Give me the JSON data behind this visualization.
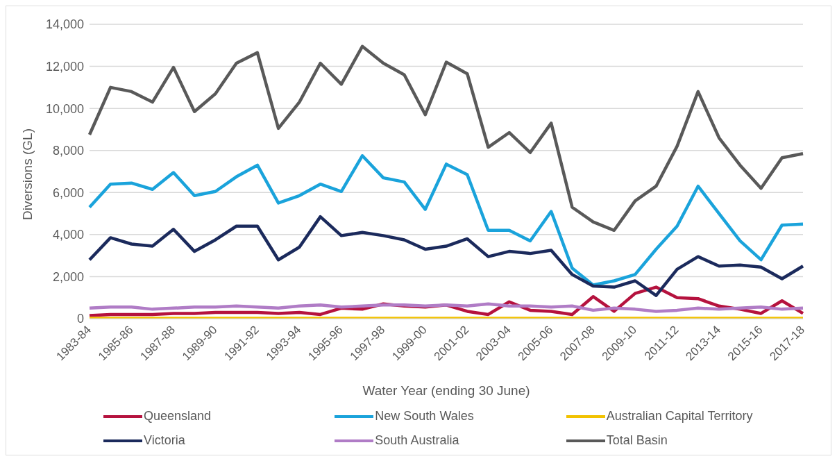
{
  "chart_data": {
    "type": "line",
    "xlabel": "Water Year (ending 30 June)",
    "ylabel": "Diversions (GL)",
    "categories": [
      "1983-84",
      null,
      "1985-86",
      null,
      "1987-88",
      null,
      "1989-90",
      null,
      "1991-92",
      null,
      "1993-94",
      null,
      "1995-96",
      null,
      "1997-98",
      null,
      "1999-00",
      null,
      "2001-02",
      null,
      "2003-04",
      null,
      "2005-06",
      null,
      "2007-08",
      null,
      "2009-10",
      null,
      "2011-12",
      null,
      "2013-14",
      null,
      "2015-16",
      null,
      "2017-18"
    ],
    "series": [
      {
        "name": "Queensland",
        "color": "#b5123e",
        "values": [
          150,
          200,
          200,
          200,
          250,
          250,
          300,
          300,
          300,
          250,
          300,
          200,
          500,
          450,
          700,
          600,
          550,
          650,
          350,
          200,
          800,
          400,
          350,
          200,
          1050,
          350,
          1200,
          1500,
          1000,
          950,
          600,
          450,
          250,
          850,
          250
        ]
      },
      {
        "name": "New South Wales",
        "color": "#1aa3db",
        "values": [
          5300,
          6400,
          6450,
          6150,
          6950,
          5850,
          6050,
          6750,
          7300,
          5500,
          5850,
          6400,
          6050,
          7750,
          6700,
          6500,
          5200,
          7350,
          6850,
          4200,
          4200,
          3700,
          5100,
          2400,
          1600,
          1800,
          2100,
          3300,
          4400,
          6300,
          5000,
          3700,
          2800,
          4450,
          4500
        ]
      },
      {
        "name": "Australian Capital Territory",
        "color": "#f2c200",
        "values": [
          20,
          20,
          20,
          20,
          20,
          20,
          20,
          20,
          20,
          20,
          20,
          20,
          20,
          20,
          20,
          20,
          20,
          20,
          20,
          20,
          20,
          20,
          20,
          20,
          20,
          20,
          20,
          20,
          20,
          20,
          20,
          20,
          20,
          20,
          20
        ]
      },
      {
        "name": "Victoria",
        "color": "#1b2a5c",
        "values": [
          2800,
          3850,
          3550,
          3450,
          4250,
          3200,
          3750,
          4400,
          4400,
          2800,
          3400,
          4850,
          3950,
          4100,
          3950,
          3750,
          3300,
          3450,
          3800,
          2950,
          3200,
          3100,
          3250,
          2100,
          1550,
          1500,
          1800,
          1100,
          2350,
          2950,
          2500,
          2550,
          2450,
          1900,
          2500
        ]
      },
      {
        "name": "South Australia",
        "color": "#b07cc6",
        "values": [
          500,
          550,
          550,
          450,
          500,
          550,
          550,
          600,
          550,
          500,
          600,
          650,
          550,
          600,
          650,
          650,
          600,
          650,
          600,
          700,
          600,
          600,
          550,
          600,
          400,
          500,
          450,
          350,
          400,
          500,
          450,
          500,
          550,
          450,
          500
        ]
      },
      {
        "name": "Total Basin",
        "color": "#595959",
        "values": [
          8750,
          11000,
          10800,
          10300,
          11950,
          9850,
          10700,
          12150,
          12650,
          9050,
          10300,
          12150,
          11150,
          12950,
          12150,
          11600,
          9700,
          12200,
          11650,
          8150,
          8850,
          7900,
          9300,
          5300,
          4600,
          4200,
          5600,
          6300,
          8200,
          10800,
          8600,
          7300,
          6200,
          7650,
          7850
        ]
      }
    ],
    "ylim": [
      0,
      14000
    ],
    "yticks": [
      {
        "value": 0,
        "label": "0"
      },
      {
        "value": 2000,
        "label": "2,000"
      },
      {
        "value": 4000,
        "label": "4,000"
      },
      {
        "value": 6000,
        "label": "6,000"
      },
      {
        "value": 8000,
        "label": "8,000"
      },
      {
        "value": 10000,
        "label": "10,000"
      },
      {
        "value": 12000,
        "label": "12,000"
      },
      {
        "value": 14000,
        "label": "14,000"
      }
    ],
    "grid": "y",
    "legend": "bottom",
    "marker": "none",
    "line_style": "solid"
  }
}
